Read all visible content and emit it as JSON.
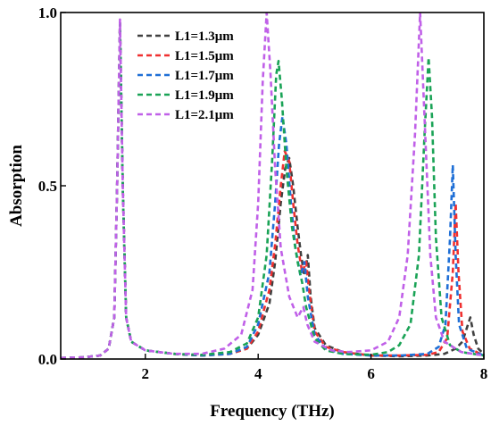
{
  "chart_data": {
    "type": "line",
    "title": "",
    "xlabel": "Frequency (THz)",
    "ylabel": "Absorption",
    "xlim": [
      0.5,
      8
    ],
    "ylim": [
      0,
      1
    ],
    "xticks": [
      2,
      4,
      6,
      8
    ],
    "xtick_labels": [
      "2",
      "4",
      "6",
      "8"
    ],
    "yticks": [
      0,
      0.5,
      1
    ],
    "ytick_labels": [
      "0.0",
      "0.5",
      "1.0"
    ],
    "grid": false,
    "legend_position": "top-left",
    "line_style": "dashed",
    "series": [
      {
        "name": "L1=1.3μm",
        "color": "#404040",
        "points": [
          [
            0.5,
            0.003
          ],
          [
            0.9,
            0.005
          ],
          [
            1.2,
            0.01
          ],
          [
            1.35,
            0.03
          ],
          [
            1.45,
            0.12
          ],
          [
            1.5,
            0.5
          ],
          [
            1.55,
            0.97
          ],
          [
            1.6,
            0.5
          ],
          [
            1.66,
            0.12
          ],
          [
            1.75,
            0.05
          ],
          [
            2.0,
            0.025
          ],
          [
            2.5,
            0.015
          ],
          [
            3.0,
            0.01
          ],
          [
            3.5,
            0.015
          ],
          [
            3.8,
            0.03
          ],
          [
            4.0,
            0.07
          ],
          [
            4.2,
            0.16
          ],
          [
            4.3,
            0.28
          ],
          [
            4.4,
            0.45
          ],
          [
            4.48,
            0.55
          ],
          [
            4.55,
            0.58
          ],
          [
            4.62,
            0.5
          ],
          [
            4.7,
            0.38
          ],
          [
            4.76,
            0.3
          ],
          [
            4.82,
            0.24
          ],
          [
            4.88,
            0.3
          ],
          [
            4.93,
            0.18
          ],
          [
            5.0,
            0.09
          ],
          [
            5.2,
            0.04
          ],
          [
            5.5,
            0.02
          ],
          [
            6.0,
            0.01
          ],
          [
            6.5,
            0.008
          ],
          [
            7.0,
            0.01
          ],
          [
            7.3,
            0.015
          ],
          [
            7.5,
            0.03
          ],
          [
            7.62,
            0.05
          ],
          [
            7.7,
            0.09
          ],
          [
            7.76,
            0.12
          ],
          [
            7.82,
            0.07
          ],
          [
            7.9,
            0.03
          ],
          [
            8.0,
            0.015
          ]
        ]
      },
      {
        "name": "L1=1.5μm",
        "color": "#f03030",
        "points": [
          [
            0.5,
            0.003
          ],
          [
            0.9,
            0.005
          ],
          [
            1.2,
            0.01
          ],
          [
            1.35,
            0.03
          ],
          [
            1.45,
            0.12
          ],
          [
            1.5,
            0.5
          ],
          [
            1.55,
            0.97
          ],
          [
            1.6,
            0.5
          ],
          [
            1.66,
            0.12
          ],
          [
            1.75,
            0.05
          ],
          [
            2.0,
            0.025
          ],
          [
            2.5,
            0.015
          ],
          [
            3.0,
            0.01
          ],
          [
            3.5,
            0.015
          ],
          [
            3.8,
            0.03
          ],
          [
            4.0,
            0.08
          ],
          [
            4.2,
            0.2
          ],
          [
            4.3,
            0.33
          ],
          [
            4.4,
            0.5
          ],
          [
            4.47,
            0.6
          ],
          [
            4.55,
            0.57
          ],
          [
            4.62,
            0.45
          ],
          [
            4.7,
            0.33
          ],
          [
            4.78,
            0.25
          ],
          [
            4.85,
            0.28
          ],
          [
            4.9,
            0.2
          ],
          [
            5.0,
            0.08
          ],
          [
            5.2,
            0.035
          ],
          [
            5.5,
            0.02
          ],
          [
            6.0,
            0.01
          ],
          [
            6.5,
            0.01
          ],
          [
            7.0,
            0.012
          ],
          [
            7.2,
            0.02
          ],
          [
            7.35,
            0.06
          ],
          [
            7.45,
            0.25
          ],
          [
            7.5,
            0.45
          ],
          [
            7.55,
            0.25
          ],
          [
            7.62,
            0.08
          ],
          [
            7.75,
            0.03
          ],
          [
            8.0,
            0.01
          ]
        ]
      },
      {
        "name": "L1=1.7μm",
        "color": "#1f6fd6",
        "points": [
          [
            0.5,
            0.003
          ],
          [
            0.9,
            0.005
          ],
          [
            1.2,
            0.01
          ],
          [
            1.35,
            0.03
          ],
          [
            1.45,
            0.12
          ],
          [
            1.5,
            0.5
          ],
          [
            1.55,
            0.97
          ],
          [
            1.6,
            0.5
          ],
          [
            1.66,
            0.12
          ],
          [
            1.75,
            0.05
          ],
          [
            2.0,
            0.025
          ],
          [
            2.5,
            0.015
          ],
          [
            3.0,
            0.01
          ],
          [
            3.5,
            0.015
          ],
          [
            3.8,
            0.035
          ],
          [
            4.0,
            0.1
          ],
          [
            4.2,
            0.25
          ],
          [
            4.3,
            0.45
          ],
          [
            4.37,
            0.62
          ],
          [
            4.43,
            0.7
          ],
          [
            4.5,
            0.62
          ],
          [
            4.58,
            0.45
          ],
          [
            4.66,
            0.32
          ],
          [
            4.75,
            0.24
          ],
          [
            4.82,
            0.28
          ],
          [
            4.88,
            0.18
          ],
          [
            5.0,
            0.07
          ],
          [
            5.2,
            0.03
          ],
          [
            5.5,
            0.015
          ],
          [
            6.0,
            0.01
          ],
          [
            6.5,
            0.01
          ],
          [
            7.0,
            0.015
          ],
          [
            7.2,
            0.035
          ],
          [
            7.32,
            0.1
          ],
          [
            7.4,
            0.35
          ],
          [
            7.45,
            0.56
          ],
          [
            7.5,
            0.3
          ],
          [
            7.56,
            0.1
          ],
          [
            7.7,
            0.03
          ],
          [
            8.0,
            0.01
          ]
        ]
      },
      {
        "name": "L1=1.9μm",
        "color": "#1aa356",
        "points": [
          [
            0.5,
            0.003
          ],
          [
            0.9,
            0.005
          ],
          [
            1.2,
            0.01
          ],
          [
            1.35,
            0.03
          ],
          [
            1.45,
            0.12
          ],
          [
            1.5,
            0.5
          ],
          [
            1.55,
            0.97
          ],
          [
            1.6,
            0.5
          ],
          [
            1.66,
            0.12
          ],
          [
            1.75,
            0.05
          ],
          [
            2.0,
            0.025
          ],
          [
            2.5,
            0.015
          ],
          [
            3.0,
            0.012
          ],
          [
            3.5,
            0.02
          ],
          [
            3.8,
            0.045
          ],
          [
            4.0,
            0.12
          ],
          [
            4.15,
            0.3
          ],
          [
            4.25,
            0.58
          ],
          [
            4.32,
            0.82
          ],
          [
            4.36,
            0.86
          ],
          [
            4.42,
            0.75
          ],
          [
            4.5,
            0.55
          ],
          [
            4.6,
            0.38
          ],
          [
            4.7,
            0.28
          ],
          [
            4.78,
            0.22
          ],
          [
            4.85,
            0.15
          ],
          [
            5.0,
            0.06
          ],
          [
            5.2,
            0.025
          ],
          [
            5.5,
            0.015
          ],
          [
            6.0,
            0.012
          ],
          [
            6.3,
            0.02
          ],
          [
            6.5,
            0.04
          ],
          [
            6.7,
            0.1
          ],
          [
            6.85,
            0.3
          ],
          [
            6.95,
            0.65
          ],
          [
            7.02,
            0.87
          ],
          [
            7.08,
            0.7
          ],
          [
            7.15,
            0.35
          ],
          [
            7.25,
            0.12
          ],
          [
            7.4,
            0.04
          ],
          [
            7.6,
            0.02
          ],
          [
            8.0,
            0.01
          ]
        ]
      },
      {
        "name": "L1=2.1μm",
        "color": "#c060e8",
        "points": [
          [
            0.5,
            0.003
          ],
          [
            0.9,
            0.005
          ],
          [
            1.2,
            0.01
          ],
          [
            1.35,
            0.03
          ],
          [
            1.45,
            0.12
          ],
          [
            1.5,
            0.5
          ],
          [
            1.55,
            0.98
          ],
          [
            1.6,
            0.5
          ],
          [
            1.66,
            0.12
          ],
          [
            1.75,
            0.05
          ],
          [
            2.0,
            0.025
          ],
          [
            2.5,
            0.015
          ],
          [
            3.0,
            0.015
          ],
          [
            3.4,
            0.03
          ],
          [
            3.7,
            0.07
          ],
          [
            3.9,
            0.2
          ],
          [
            4.0,
            0.45
          ],
          [
            4.08,
            0.8
          ],
          [
            4.15,
            1.0
          ],
          [
            4.22,
            0.82
          ],
          [
            4.3,
            0.55
          ],
          [
            4.4,
            0.32
          ],
          [
            4.55,
            0.18
          ],
          [
            4.7,
            0.12
          ],
          [
            4.8,
            0.15
          ],
          [
            4.87,
            0.1
          ],
          [
            5.0,
            0.05
          ],
          [
            5.3,
            0.025
          ],
          [
            5.6,
            0.02
          ],
          [
            6.0,
            0.025
          ],
          [
            6.3,
            0.05
          ],
          [
            6.5,
            0.12
          ],
          [
            6.65,
            0.3
          ],
          [
            6.78,
            0.65
          ],
          [
            6.87,
            1.0
          ],
          [
            6.96,
            0.65
          ],
          [
            7.05,
            0.3
          ],
          [
            7.15,
            0.12
          ],
          [
            7.3,
            0.05
          ],
          [
            7.6,
            0.02
          ],
          [
            8.0,
            0.01
          ]
        ]
      }
    ]
  }
}
